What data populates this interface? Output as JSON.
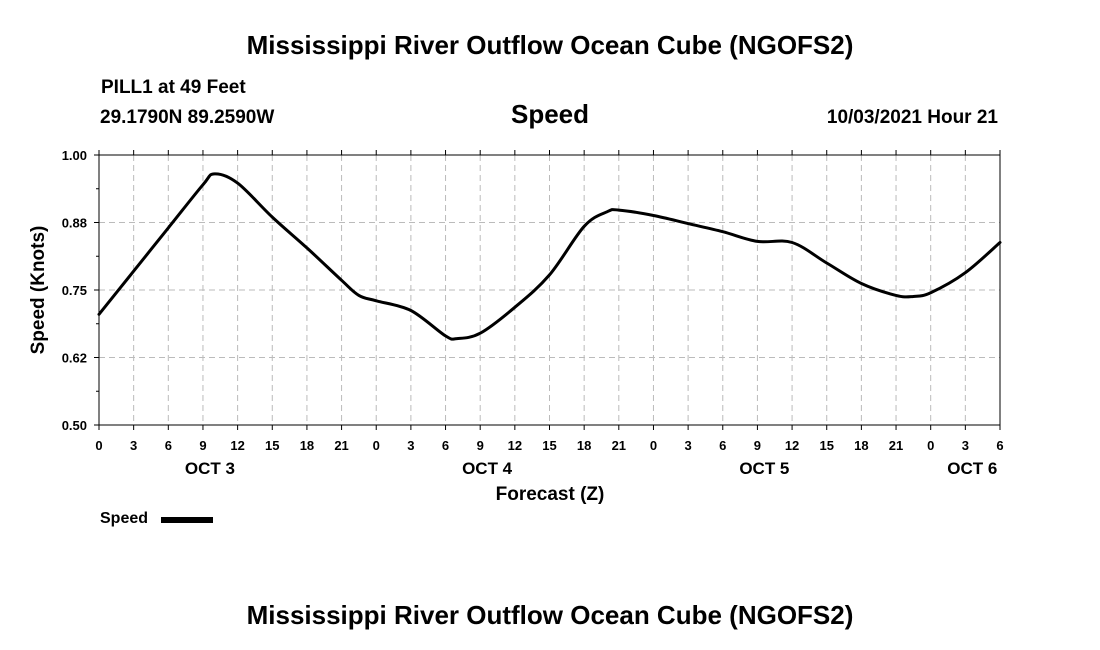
{
  "header": {
    "title_top": "Mississippi River Outflow Ocean Cube (NGOFS2)",
    "title_bottom": "Mississippi River Outflow Ocean Cube (NGOFS2)",
    "station": "PILL1 at 49 Feet",
    "coords": "29.1790N  89.2590W",
    "datetime": "10/03/2021 Hour 21"
  },
  "colors": {
    "line": "#000000",
    "grid": "#bbbbbb",
    "background": "#ffffff"
  },
  "chart_data": {
    "type": "line",
    "title": "Speed",
    "xlabel": "Forecast (Z)",
    "ylabel": "Speed (Knots)",
    "ylim": [
      0.5,
      1.0
    ],
    "xlim": [
      0,
      78
    ],
    "x_unit": "hours since Oct 3 00Z",
    "yticks": [
      "1.00",
      "0.88",
      "0.75",
      "0.62",
      "0.50"
    ],
    "ytick_values": [
      1.0,
      0.875,
      0.75,
      0.625,
      0.5
    ],
    "xtick_labels": [
      "0",
      "3",
      "6",
      "9",
      "12",
      "15",
      "18",
      "21",
      "0",
      "3",
      "6",
      "9",
      "12",
      "15",
      "18",
      "21",
      "0",
      "3",
      "6",
      "9",
      "12",
      "15",
      "18",
      "21",
      "0",
      "3",
      "6"
    ],
    "day_labels": [
      {
        "label": "OCT 3",
        "hour": 9.6
      },
      {
        "label": "OCT 4",
        "hour": 33.6
      },
      {
        "label": "OCT 5",
        "hour": 57.6
      },
      {
        "label": "OCT 6",
        "hour": 75.6
      }
    ],
    "grid": true,
    "legend": "bottom-left",
    "series": [
      {
        "name": "Speed",
        "x": [
          0,
          3,
          6,
          9,
          10,
          12,
          15,
          18,
          21,
          22.5,
          24,
          27,
          30,
          31,
          33,
          36,
          39,
          42,
          44,
          45,
          48,
          51,
          54,
          57,
          60,
          63,
          66,
          69,
          70.5,
          72,
          75,
          78
        ],
        "y": [
          0.705,
          0.785,
          0.865,
          0.945,
          0.965,
          0.948,
          0.885,
          0.828,
          0.768,
          0.74,
          0.73,
          0.712,
          0.665,
          0.66,
          0.67,
          0.718,
          0.778,
          0.868,
          0.895,
          0.898,
          0.888,
          0.873,
          0.858,
          0.84,
          0.838,
          0.8,
          0.762,
          0.74,
          0.738,
          0.745,
          0.782,
          0.838
        ]
      }
    ]
  },
  "legend": {
    "label": "Speed"
  }
}
